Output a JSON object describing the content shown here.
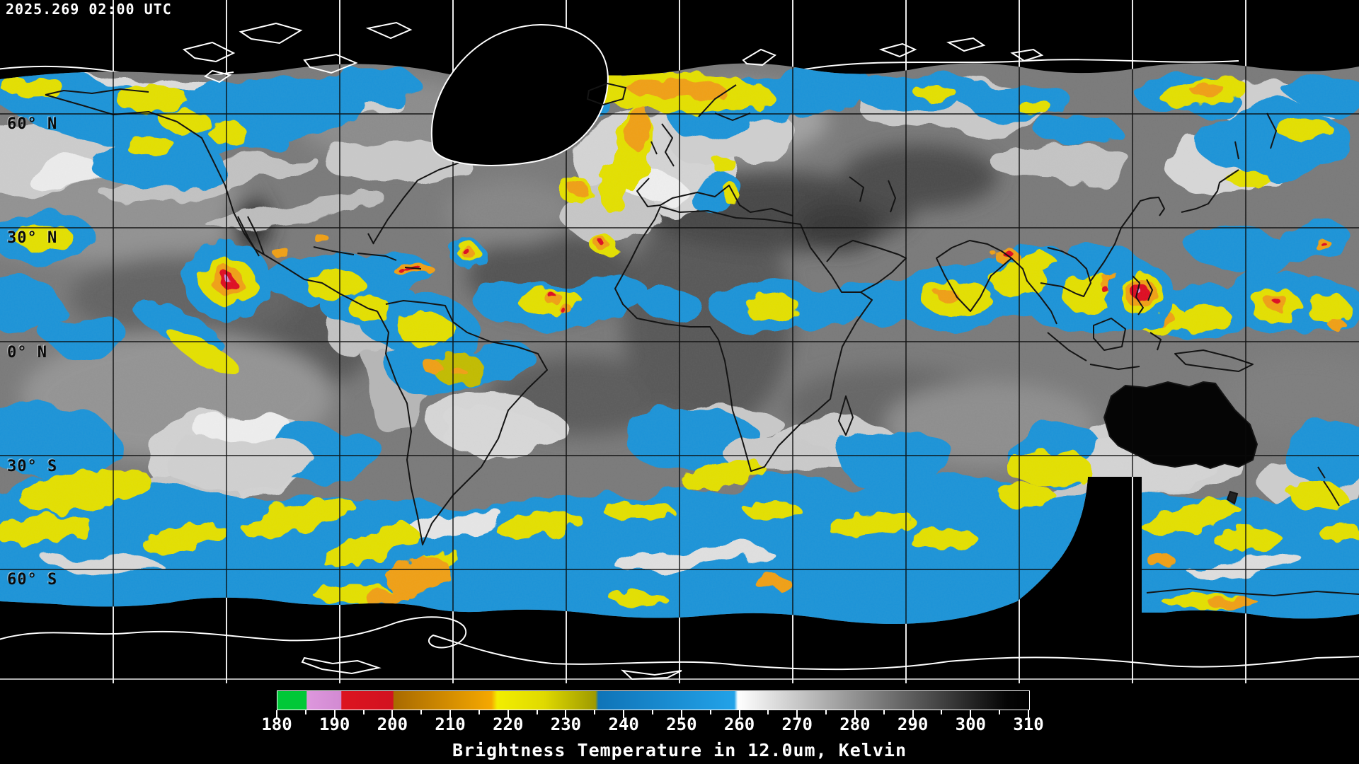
{
  "header": {
    "timestamp": "2025.269 02:00 UTC"
  },
  "map": {
    "description": "Global geostationary satellite infrared composite",
    "latitude_labels": [
      "60° N",
      "30° N",
      "0° N",
      "30° S",
      "60° S"
    ],
    "grid": {
      "lon_step_deg": 30,
      "lat_step_deg": 30
    }
  },
  "colorbar": {
    "caption": "Brightness Temperature in 12.0um, Kelvin",
    "min_k": 180,
    "max_k": 310,
    "major_tick_step": 10,
    "minor_tick_step": 5,
    "tick_labels": [
      "180",
      "190",
      "200",
      "210",
      "220",
      "230",
      "240",
      "250",
      "260",
      "270",
      "280",
      "290",
      "300",
      "310"
    ],
    "stops": [
      {
        "at": 180,
        "color": "#00c838"
      },
      {
        "at": 185,
        "color": "#00c838"
      },
      {
        "at": 185.1,
        "color": "#dd97dd"
      },
      {
        "at": 191,
        "color": "#d28ad2"
      },
      {
        "at": 191.1,
        "color": "#dc1420"
      },
      {
        "at": 200,
        "color": "#d21220"
      },
      {
        "at": 200.1,
        "color": "#a86a00"
      },
      {
        "at": 217,
        "color": "#f5a800"
      },
      {
        "at": 218,
        "color": "#f2ee00"
      },
      {
        "at": 226,
        "color": "#e0da00"
      },
      {
        "at": 235,
        "color": "#9e9a00"
      },
      {
        "at": 235.5,
        "color": "#0f74b8"
      },
      {
        "at": 259,
        "color": "#22a2e8"
      },
      {
        "at": 259.6,
        "color": "#ffffff"
      },
      {
        "at": 306,
        "color": "#050505"
      },
      {
        "at": 310,
        "color": "#000000"
      }
    ]
  },
  "palette": {
    "space": "#000000",
    "coast_on_space": "#ffffff",
    "coast_on_data": "#141414",
    "cold_blue": "#1b94d8",
    "cold_yellow": "#e4e000",
    "cold_orange": "#f0a012",
    "cold_red": "#de1020",
    "cold_violet": "#d98cd9",
    "cold_green": "#00c838"
  }
}
